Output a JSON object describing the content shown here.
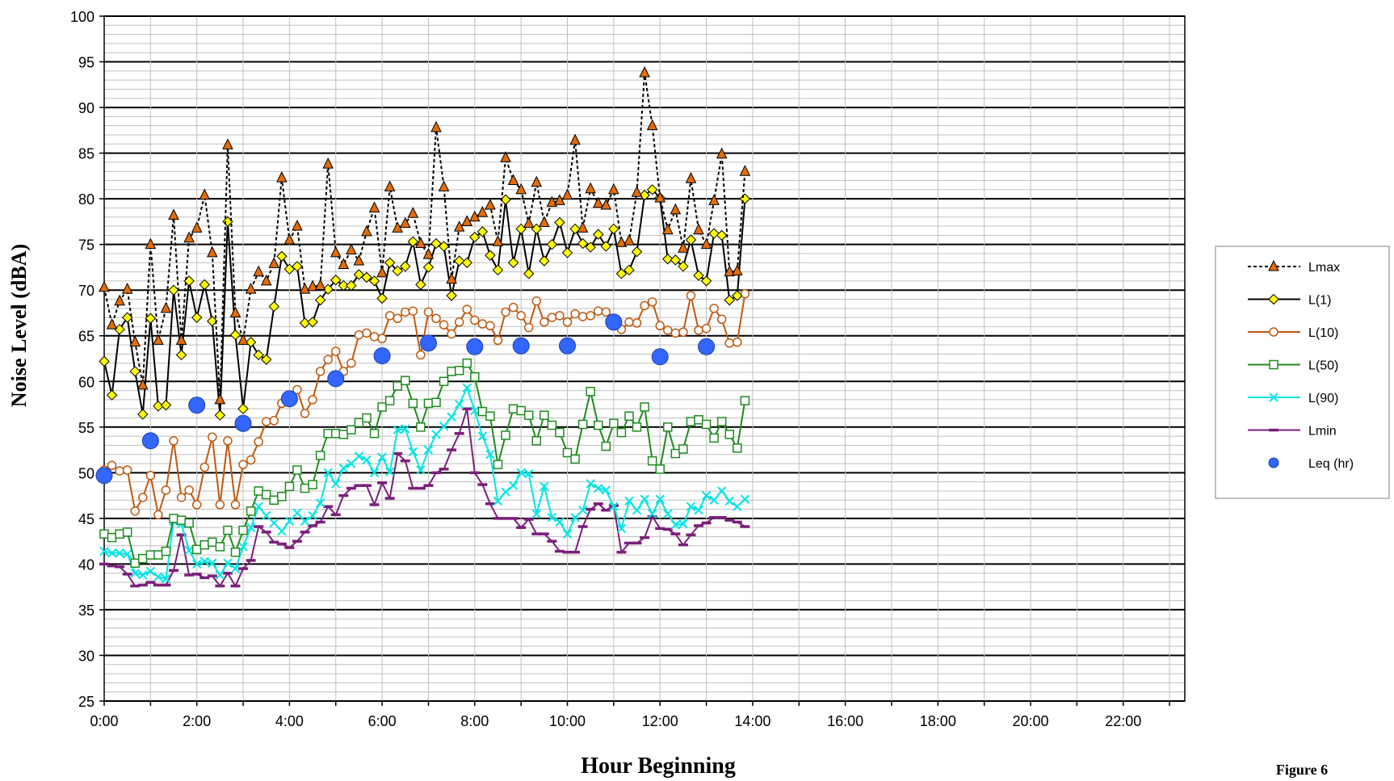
{
  "chart_data": {
    "type": "line",
    "title": "",
    "xlabel": "Hour Beginning",
    "ylabel": "Noise Level (dBA)",
    "figure_label": "Figure 6",
    "ylim": [
      25,
      100
    ],
    "y_major_step": 5,
    "y_minor_step": 1,
    "y_ticks": [
      "25",
      "30",
      "35",
      "40",
      "45",
      "50",
      "55",
      "60",
      "65",
      "70",
      "75",
      "80",
      "85",
      "90",
      "95",
      "100"
    ],
    "xlim_hours": [
      0,
      23.33
    ],
    "x_ticks": [
      "0:00",
      "2:00",
      "4:00",
      "6:00",
      "8:00",
      "10:00",
      "12:00",
      "14:00",
      "16:00",
      "18:00",
      "20:00",
      "22:00"
    ],
    "grid": true,
    "legend_position": "right",
    "x_interval_minutes": 10,
    "series": [
      {
        "name": "Lmax",
        "color": "#000000",
        "dash": true,
        "marker": "triangle",
        "marker_fill": "#E36C09",
        "values": [
          70.3,
          66.2,
          68.8,
          70.1,
          64.3,
          59.6,
          75,
          64.5,
          68,
          78.2,
          64.5,
          75.7,
          76.8,
          80.4,
          74.1,
          58,
          85.9,
          67.5,
          64.5,
          70.1,
          72,
          71,
          72.9,
          82.3,
          75.5,
          77,
          70.1,
          70.4,
          70.5,
          83.8,
          74.1,
          72.8,
          74.4,
          73.2,
          76.4,
          79,
          71.9,
          81.3,
          76.8,
          77.3,
          78.4,
          75.1,
          73.9,
          87.8,
          81.3,
          71.2,
          76.9,
          77.5,
          78,
          78.5,
          79.3,
          75.3,
          84.5,
          82,
          81,
          77.3,
          81.8,
          77.4,
          79.6,
          79.8,
          80.4,
          86.4,
          76.8,
          81.1,
          79.5,
          79.3,
          81,
          75.2,
          75.4,
          80.7,
          93.8,
          88,
          80.1,
          76.6,
          78.8,
          74.6,
          82.2,
          76.6,
          75,
          79.8,
          84.9,
          72,
          72.1,
          83
        ]
      },
      {
        "name": "L(1)",
        "color": "#000000",
        "dash": false,
        "marker": "diamond",
        "marker_fill": "#FFFF00",
        "values": [
          62.2,
          58.5,
          65.7,
          67,
          61.1,
          56.4,
          66.9,
          57.3,
          57.4,
          70,
          62.9,
          71,
          67,
          70.6,
          66.6,
          56.3,
          77.5,
          65.1,
          57,
          64.3,
          62.9,
          62.4,
          68.2,
          73.7,
          72.3,
          72.6,
          66.4,
          66.5,
          68.9,
          70.1,
          71.1,
          70.5,
          70.5,
          71.7,
          71.4,
          71,
          69.1,
          73,
          72.1,
          72.6,
          75.3,
          70.6,
          72.5,
          75.1,
          74.8,
          69.4,
          73.2,
          73,
          75.8,
          76.4,
          73.8,
          72.2,
          79.9,
          73,
          76.7,
          71.8,
          76.7,
          73.2,
          75,
          77.4,
          74.1,
          76.7,
          75.1,
          74.7,
          76.1,
          74.8,
          76.7,
          71.8,
          72.2,
          74.2,
          80.4,
          81,
          80.1,
          73.4,
          73.3,
          72.6,
          75.5,
          71.6,
          71,
          76.2,
          76,
          68.9,
          69.4,
          80
        ]
      },
      {
        "name": "L(10)",
        "color": "#C0580F",
        "dash": false,
        "marker": "circle",
        "marker_fill": "none",
        "values": [
          50.3,
          50.8,
          50.2,
          50.3,
          45.8,
          47.3,
          49.7,
          45.4,
          48.1,
          53.5,
          47.3,
          48.1,
          46.5,
          50.6,
          53.9,
          46.5,
          53.5,
          46.5,
          50.9,
          51.4,
          53.4,
          55.6,
          55.7,
          57.6,
          58.3,
          59.1,
          56.5,
          58,
          61.1,
          62.4,
          63.3,
          61.1,
          62,
          65.1,
          65.3,
          64.9,
          64.7,
          67.2,
          66.9,
          67.6,
          67.7,
          62.9,
          67.6,
          66.9,
          66.2,
          65.2,
          66.5,
          67.9,
          66.7,
          66.3,
          66.1,
          64.5,
          67.6,
          68.1,
          67.2,
          65.9,
          68.8,
          66.5,
          67,
          67.2,
          66.5,
          67.4,
          67.1,
          67.2,
          67.7,
          67.6,
          66.8,
          65.7,
          66.5,
          66.4,
          68.3,
          68.7,
          66.1,
          65.6,
          65.3,
          65.4,
          69.4,
          65.6,
          65.8,
          68,
          66.8,
          64.2,
          64.3,
          69.6
        ]
      },
      {
        "name": "L(50)",
        "color": "#1E8B1E",
        "dash": false,
        "marker": "square",
        "marker_fill": "none",
        "values": [
          43.3,
          42.9,
          43.3,
          43.5,
          40.1,
          40.6,
          41,
          41,
          41.4,
          45,
          44.8,
          44.5,
          41.6,
          42.1,
          42.4,
          41.9,
          43.7,
          41.3,
          43.7,
          45.8,
          48,
          47.6,
          47,
          47.4,
          48.5,
          50.3,
          48.3,
          48.7,
          51.9,
          54.3,
          54.3,
          54.2,
          54.7,
          55.5,
          56,
          54.3,
          57.2,
          57.9,
          59.5,
          60.1,
          57.6,
          55,
          57.6,
          57.7,
          60,
          61.1,
          61.2,
          62,
          60.5,
          56.7,
          56.2,
          50.9,
          54.1,
          57,
          56.8,
          56.3,
          53.5,
          56.3,
          55.2,
          54.4,
          52.2,
          51.5,
          55.3,
          58.9,
          55.2,
          52.9,
          55.4,
          54.4,
          56.2,
          55,
          57.2,
          51.3,
          50.4,
          55,
          52.1,
          52.6,
          55.6,
          55.8,
          55.3,
          53.8,
          55.6,
          54.2,
          52.7,
          57.9
        ]
      },
      {
        "name": "L(90)",
        "color": "#00E5E5",
        "dash": false,
        "marker": "x",
        "marker_fill": "none",
        "values": [
          41.4,
          41.2,
          41.2,
          41.1,
          39,
          38.8,
          39.2,
          38.6,
          38.4,
          44.7,
          44.4,
          41.5,
          40,
          40.3,
          40.1,
          38.8,
          40.1,
          39.5,
          41.9,
          44,
          46.3,
          45.3,
          44.5,
          43.6,
          44.7,
          45.6,
          44.7,
          45.3,
          46.7,
          50,
          48.8,
          50.5,
          51,
          51.8,
          51.4,
          50,
          51.7,
          50.1,
          54.7,
          54.8,
          52.3,
          50.3,
          52.5,
          54.2,
          55.1,
          56.1,
          57.5,
          59.3,
          56.8,
          54,
          52,
          46.9,
          47.9,
          48.6,
          50,
          49.9,
          45.5,
          48.5,
          45.1,
          44.6,
          43.3,
          45.1,
          45.9,
          48.8,
          48.3,
          48.1,
          46.3,
          43.9,
          46.9,
          45.9,
          47.1,
          45.5,
          47.1,
          45.5,
          44.3,
          44.4,
          46.3,
          45.9,
          47.5,
          47,
          48,
          46.9,
          46.3,
          47.1
        ]
      },
      {
        "name": "Lmin",
        "color": "#7B1F7B",
        "dash": false,
        "marker": "dash",
        "marker_fill": "none",
        "values": [
          40,
          39.8,
          39.7,
          38.9,
          37.6,
          37.7,
          38,
          37.7,
          37.7,
          39.3,
          43.2,
          38.8,
          38.9,
          38.5,
          38.7,
          37.6,
          39,
          37.6,
          39.5,
          40.4,
          44.1,
          43.5,
          42.4,
          42.2,
          41.8,
          42.5,
          43.5,
          44.2,
          44.6,
          46.3,
          45.4,
          47.5,
          48.3,
          48.6,
          48.6,
          46.5,
          48.9,
          47.2,
          52.1,
          51.3,
          48.3,
          48.3,
          48.6,
          50,
          50.4,
          52.5,
          54.3,
          57,
          50,
          48.7,
          46.6,
          45,
          45,
          45,
          44,
          44.9,
          43.3,
          43.3,
          42.5,
          41.4,
          41.3,
          41.3,
          44.1,
          46,
          46.6,
          45.9,
          46.4,
          41.3,
          42.3,
          42.3,
          42.9,
          45.2,
          43.9,
          43.8,
          43.3,
          42.1,
          43.2,
          44.2,
          44.5,
          45.1,
          45.1,
          44.8,
          44.6,
          44.1
        ]
      },
      {
        "name": "Leq (hr)",
        "color": "#1F4FE0",
        "dash": false,
        "marker": "big-circle",
        "marker_fill": "#3366FF",
        "x_hours": [
          0,
          1,
          2,
          3,
          4,
          5,
          6,
          7,
          8,
          9,
          10,
          11,
          12,
          13
        ],
        "values": [
          49.7,
          53.5,
          57.4,
          55.4,
          58.1,
          60.3,
          62.8,
          64.2,
          63.8,
          63.9,
          63.9,
          66.5,
          62.7,
          63.8
        ]
      }
    ]
  }
}
